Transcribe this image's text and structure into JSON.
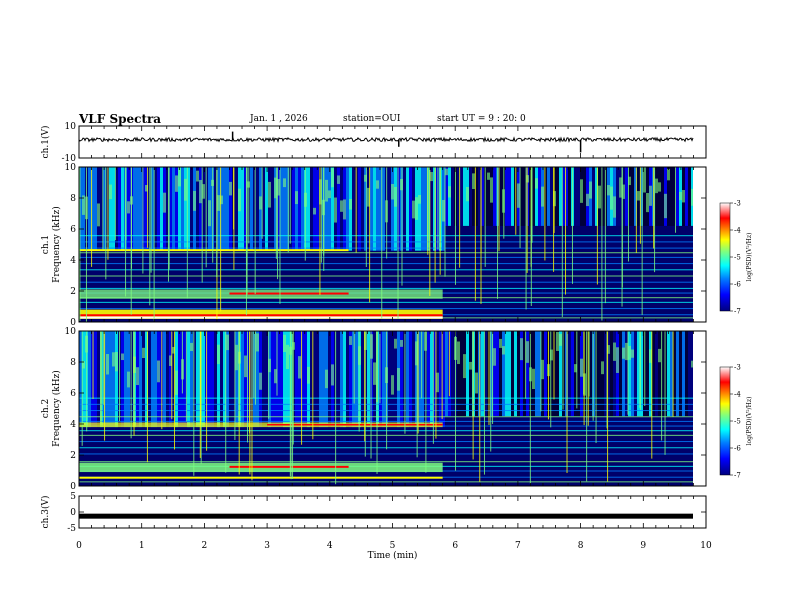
{
  "header": {
    "title": "VLF Spectra",
    "date": "Jan. 1 , 2026",
    "station": "station=OUI",
    "start": "start UT = 9 : 20: 0"
  },
  "colors": {
    "colormap": [
      "#00007f",
      "#0000ff",
      "#007fff",
      "#00ffff",
      "#7fff7f",
      "#ffff00",
      "#ff7f00",
      "#ff0000",
      "#ffffff"
    ]
  },
  "chart_data": [
    {
      "type": "line",
      "name": "ch1-waveform",
      "ylabel": "ch.1(V)",
      "ylim": [
        -10,
        10
      ],
      "yticks": [
        "10",
        "-10"
      ],
      "xlim": [
        0,
        10
      ],
      "approx_level": 1.5,
      "spikes": [
        {
          "t": 2.45,
          "v": 6.5
        },
        {
          "t": 5.1,
          "v": -3
        },
        {
          "t": 8.0,
          "v": -6.5
        }
      ]
    },
    {
      "type": "heatmap",
      "name": "ch1-spectrogram",
      "ylabel": "ch.1",
      "ylabel2": "Frequency (kHz)",
      "ylim": [
        0,
        10
      ],
      "yticks": [
        "0",
        "2",
        "4",
        "6",
        "8",
        "10"
      ],
      "xlim": [
        0,
        10
      ],
      "colorbar": {
        "label": "log(PSD)(V²/Hz)",
        "range": [
          -7,
          -3
        ],
        "ticks": [
          "-3",
          "-4",
          "-5",
          "-6",
          "-7"
        ]
      }
    },
    {
      "type": "heatmap",
      "name": "ch2-spectrogram",
      "ylabel": "ch.2",
      "ylabel2": "Frequency (kHz)",
      "ylim": [
        0,
        10
      ],
      "yticks": [
        "0",
        "2",
        "4",
        "6",
        "8",
        "10"
      ],
      "xlim": [
        0,
        10
      ],
      "colorbar": {
        "label": "log(PSD)(V²/Hz)",
        "range": [
          -7,
          -3
        ],
        "ticks": [
          "-3",
          "-4",
          "-5",
          "-6",
          "-7"
        ]
      }
    },
    {
      "type": "line",
      "name": "ch3-waveform",
      "ylabel": "ch.3(V)",
      "ylim": [
        -5,
        5
      ],
      "yticks": [
        "5",
        "0",
        "-5"
      ],
      "xlim": [
        0,
        10
      ],
      "approx_level": -1.3
    }
  ],
  "xaxis": {
    "label": "Time (min)",
    "ticks": [
      "0",
      "1",
      "2",
      "3",
      "4",
      "5",
      "6",
      "7",
      "8",
      "9",
      "10"
    ]
  }
}
